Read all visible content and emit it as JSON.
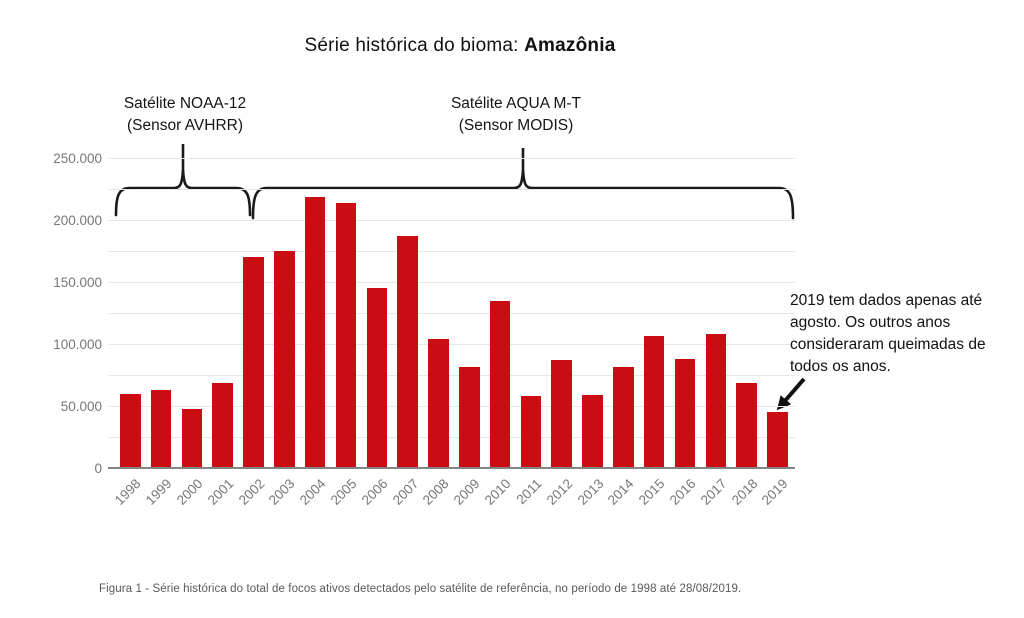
{
  "title": {
    "prefix": "Série histórica do bioma: ",
    "highlight": "Amazônia"
  },
  "sensor_labels": {
    "noaa": "Satélite NOAA-12\n(Sensor AVHRR)",
    "aqua": "Satélite AQUA M-T\n(Sensor MODIS)"
  },
  "annotation_2019": "2019 tem dados apenas até\nagosto. Os outros anos\nconsideraram queimadas de\ntodos os anos.",
  "caption": "Figura 1 - Série histórica do total de focos ativos detectados pelo satélite de referência, no período de 1998 até 28/08/2019.",
  "chart_data": {
    "type": "bar",
    "title": "Série histórica do bioma: Amazônia",
    "categories": [
      "1998",
      "1999",
      "2000",
      "2001",
      "2002",
      "2003",
      "2004",
      "2005",
      "2006",
      "2007",
      "2008",
      "2009",
      "2010",
      "2011",
      "2012",
      "2013",
      "2014",
      "2015",
      "2016",
      "2017",
      "2018",
      "2019"
    ],
    "values": [
      59000,
      62000,
      47000,
      68000,
      169000,
      174000,
      218000,
      213000,
      144000,
      186000,
      103000,
      81000,
      134000,
      57000,
      86000,
      58000,
      81000,
      106000,
      87000,
      107000,
      68000,
      44000
    ],
    "xlabel": "",
    "ylabel": "",
    "ylim": [
      0,
      250000
    ],
    "ytick_labels": [
      "250.000",
      "200.000",
      "150.000",
      "100.000",
      "50.000",
      "0"
    ],
    "ytick_values": [
      250000,
      200000,
      150000,
      100000,
      50000,
      0
    ],
    "minor_gridline_step": 25000,
    "grid": true,
    "legend": "none",
    "bar_color": "#c90d12",
    "gridline_color": "#e7e7e7",
    "axis_color": "#848484",
    "tick_label_color": "#777777",
    "annotations": {
      "brackets": [
        {
          "label": "Satélite NOAA-12 (Sensor AVHRR)",
          "from_category": "1998",
          "to_category": "2001"
        },
        {
          "label": "Satélite AQUA M-T (Sensor MODIS)",
          "from_category": "2002",
          "to_category": "2019"
        }
      ],
      "callout": {
        "text": "2019 tem dados apenas até agosto. Os outros anos consideraram queimadas de todos os anos.",
        "target_category": "2019"
      }
    }
  }
}
